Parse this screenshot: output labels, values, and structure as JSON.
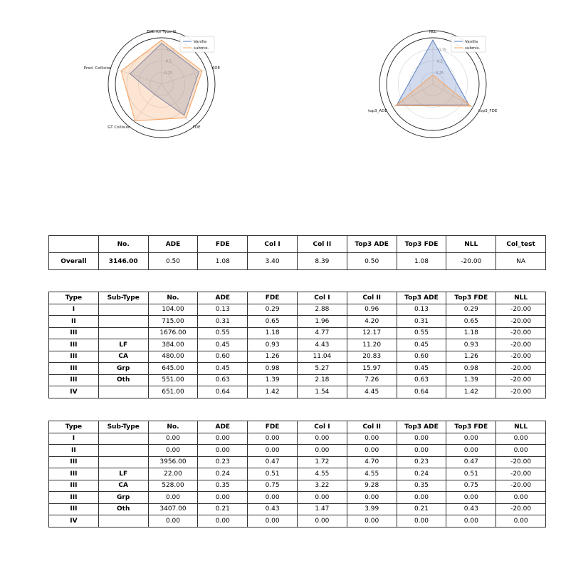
{
  "chart_data": [
    {
      "type": "radar",
      "axes": [
        "FDE for Type III",
        "ADE",
        "FDE",
        "GT Collision",
        "Pred. Collision"
      ],
      "rticks": [
        "0.25",
        "0.5",
        "0.75"
      ],
      "rlim": [
        0,
        1
      ],
      "legend_position": "top-right",
      "series": [
        {
          "name": "Vanilla",
          "values": [
            0.88,
            0.85,
            0.83,
            0.27,
            0.72
          ],
          "color": "#5b7fbf"
        },
        {
          "name": "submis.",
          "values": [
            0.95,
            0.92,
            0.9,
            0.98,
            0.92
          ],
          "color": "#f5a15f"
        }
      ]
    },
    {
      "type": "radar",
      "axes": [
        "NLL",
        "top3_FDE",
        "top3_ADE"
      ],
      "rticks": [
        "0.25",
        "0.5",
        "0.75"
      ],
      "rlim": [
        0,
        1
      ],
      "legend_position": "top-right",
      "series": [
        {
          "name": "Vanilla",
          "values": [
            0.95,
            0.9,
            0.9
          ],
          "color": "#5b7fbf"
        },
        {
          "name": "submis.",
          "values": [
            0.2,
            0.95,
            0.93
          ],
          "color": "#f5a15f"
        }
      ]
    },
    {
      "type": "table",
      "headers": [
        "",
        "No.",
        "ADE",
        "FDE",
        "Col I",
        "Col II",
        "Top3 ADE",
        "Top3 FDE",
        "NLL",
        "Col_test"
      ],
      "rows": [
        [
          "Overall",
          "3146.00",
          "0.50",
          "1.08",
          "3.40",
          "8.39",
          "0.50",
          "1.08",
          "-20.00",
          "NA"
        ]
      ]
    },
    {
      "type": "table",
      "headers": [
        "Type",
        "Sub-Type",
        "No.",
        "ADE",
        "FDE",
        "Col I",
        "Col II",
        "Top3 ADE",
        "Top3 FDE",
        "NLL"
      ],
      "rows": [
        [
          "I",
          "",
          "104.00",
          "0.13",
          "0.29",
          "2.88",
          "0.96",
          "0.13",
          "0.29",
          "-20.00"
        ],
        [
          "II",
          "",
          "715.00",
          "0.31",
          "0.65",
          "1.96",
          "4.20",
          "0.31",
          "0.65",
          "-20.00"
        ],
        [
          "III",
          "",
          "1676.00",
          "0.55",
          "1.18",
          "4.77",
          "12.17",
          "0.55",
          "1.18",
          "-20.00"
        ],
        [
          "III",
          "LF",
          "384.00",
          "0.45",
          "0.93",
          "4.43",
          "11.20",
          "0.45",
          "0.93",
          "-20.00"
        ],
        [
          "III",
          "CA",
          "480.00",
          "0.60",
          "1.26",
          "11.04",
          "20.83",
          "0.60",
          "1.26",
          "-20.00"
        ],
        [
          "III",
          "Grp",
          "645.00",
          "0.45",
          "0.98",
          "5.27",
          "15.97",
          "0.45",
          "0.98",
          "-20.00"
        ],
        [
          "III",
          "Oth",
          "551.00",
          "0.63",
          "1.39",
          "2.18",
          "7.26",
          "0.63",
          "1.39",
          "-20.00"
        ],
        [
          "IV",
          "",
          "651.00",
          "0.64",
          "1.42",
          "1.54",
          "4.45",
          "0.64",
          "1.42",
          "-20.00"
        ]
      ]
    },
    {
      "type": "table",
      "headers": [
        "Type",
        "Sub-Type",
        "No.",
        "ADE",
        "FDE",
        "Col I",
        "Col II",
        "Top3 ADE",
        "Top3 FDE",
        "NLL"
      ],
      "rows": [
        [
          "I",
          "",
          "0.00",
          "0.00",
          "0.00",
          "0.00",
          "0.00",
          "0.00",
          "0.00",
          "0.00"
        ],
        [
          "II",
          "",
          "0.00",
          "0.00",
          "0.00",
          "0.00",
          "0.00",
          "0.00",
          "0.00",
          "0.00"
        ],
        [
          "III",
          "",
          "3956.00",
          "0.23",
          "0.47",
          "1.72",
          "4.70",
          "0.23",
          "0.47",
          "-20.00"
        ],
        [
          "III",
          "LF",
          "22.00",
          "0.24",
          "0.51",
          "4.55",
          "4.55",
          "0.24",
          "0.51",
          "-20.00"
        ],
        [
          "III",
          "CA",
          "528.00",
          "0.35",
          "0.75",
          "3.22",
          "9.28",
          "0.35",
          "0.75",
          "-20.00"
        ],
        [
          "III",
          "Grp",
          "0.00",
          "0.00",
          "0.00",
          "0.00",
          "0.00",
          "0.00",
          "0.00",
          "0.00"
        ],
        [
          "III",
          "Oth",
          "3407.00",
          "0.21",
          "0.43",
          "1.47",
          "3.99",
          "0.21",
          "0.43",
          "-20.00"
        ],
        [
          "IV",
          "",
          "0.00",
          "0.00",
          "0.00",
          "0.00",
          "0.00",
          "0.00",
          "0.00",
          "0.00"
        ]
      ]
    }
  ]
}
